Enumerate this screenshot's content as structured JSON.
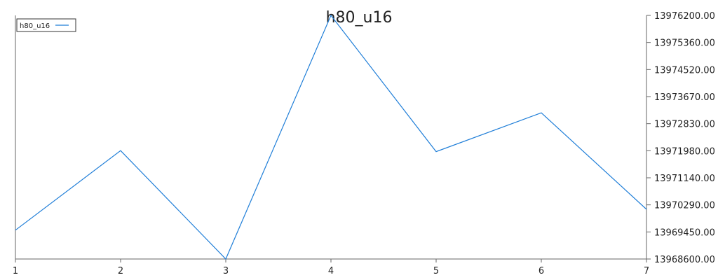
{
  "chart_data": {
    "type": "line",
    "title": "h80_u16",
    "xlabel": "",
    "ylabel": "",
    "x": [
      1,
      2,
      3,
      4,
      5,
      6,
      7
    ],
    "x_tick_labels": [
      "1",
      "2",
      "3",
      "4",
      "5",
      "6",
      "7"
    ],
    "y_tick_labels": [
      "13968600.00",
      "13969450.00",
      "13970290.00",
      "13971140.00",
      "13971980.00",
      "13972830.00",
      "13973670.00",
      "13974520.00",
      "13975360.00",
      "13976200.00"
    ],
    "ylim": [
      13968600,
      13976200
    ],
    "y_axis_side": "right",
    "grid": false,
    "legend_position": "top-left",
    "series": [
      {
        "name": "h80_u16",
        "color": "#1f7ed8",
        "values": [
          13969500,
          13971980,
          13968600,
          13976200,
          13971950,
          13973160,
          13970150
        ]
      }
    ]
  }
}
